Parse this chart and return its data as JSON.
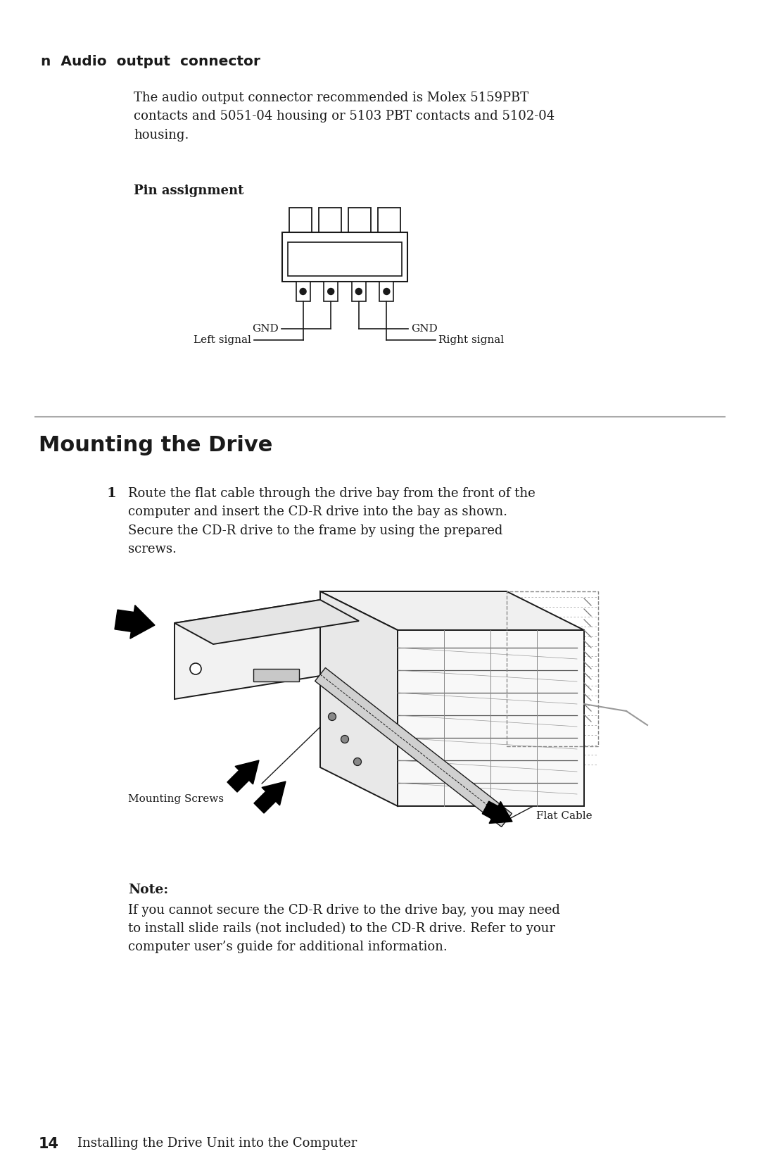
{
  "bg_color": "#ffffff",
  "section1_header": "n  Audio  output  connector",
  "section1_body": "The audio output connector recommended is Molex 5159PBT\ncontacts and 5051-04 housing or 5103 PBT contacts and 5102-04\nhousing.",
  "pin_assignment_label": "Pin assignment",
  "left_signal_label": "Left signal",
  "right_signal_label": "Right signal",
  "gnd_left_label": "GND",
  "gnd_right_label": "GND",
  "section2_header": "Mounting the Drive",
  "step1_number": "1",
  "step1_text": "Route the flat cable through the drive bay from the front of the\ncomputer and insert the CD-R drive into the bay as shown.\nSecure the CD-R drive to the frame by using the prepared\nscrews.",
  "mounting_screws_label": "Mounting Screws",
  "flat_cable_label": "Flat Cable",
  "note_header": "Note:",
  "note_text": "If you cannot secure the CD-R drive to the drive bay, you may need\nto install slide rails (not included) to the CD-R drive. Refer to your\ncomputer user’s guide for additional information.",
  "footer_number": "14",
  "footer_text": "Installing the Drive Unit into the Computer",
  "text_color": "#1a1a1a",
  "line_color": "#1a1a1a",
  "divider_color": "#aaaaaa"
}
